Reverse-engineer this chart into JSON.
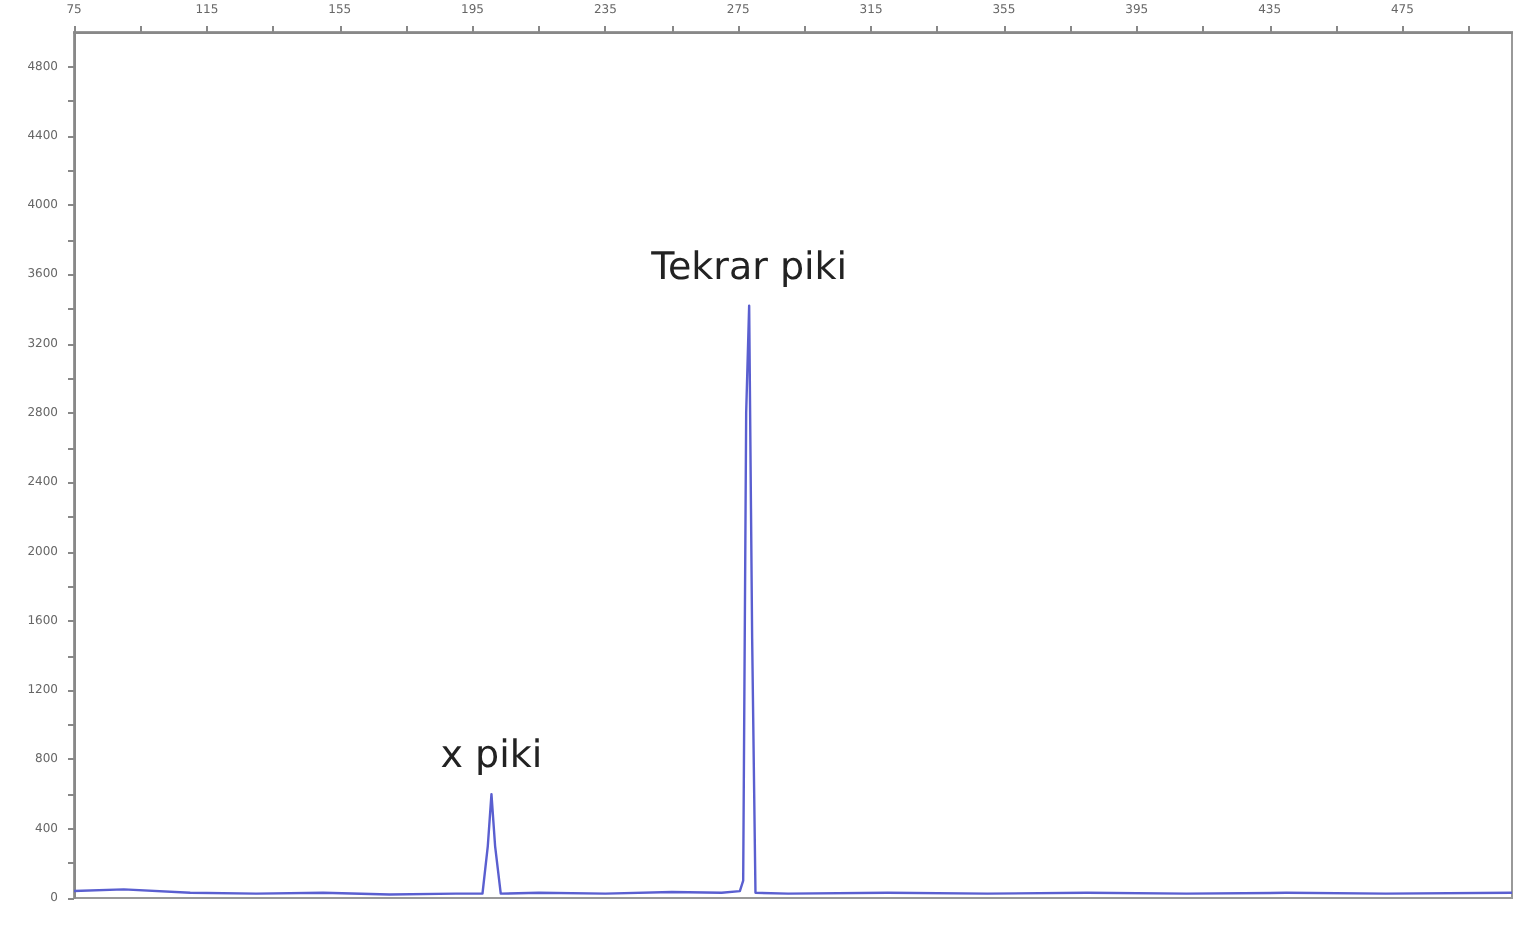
{
  "chart_data": {
    "type": "line",
    "xlim": [
      75,
      508
    ],
    "ylim": [
      0,
      5000
    ],
    "xticks": [
      75,
      {
        "value": 95,
        "label": null
      },
      115,
      {
        "value": 135,
        "label": null
      },
      155,
      {
        "value": 175,
        "label": null
      },
      195,
      {
        "value": 215,
        "label": null
      },
      235,
      {
        "value": 255,
        "label": null
      },
      275,
      {
        "value": 295,
        "label": null
      },
      315,
      {
        "value": 335,
        "label": null
      },
      355,
      {
        "value": 375,
        "label": null
      },
      395,
      {
        "value": 415,
        "label": null
      },
      435,
      {
        "value": 455,
        "label": null
      },
      475,
      {
        "value": 495,
        "label": null
      }
    ],
    "yticks": [
      0,
      {
        "value": 200,
        "label": null
      },
      400,
      {
        "value": 600,
        "label": null
      },
      800,
      {
        "value": 1000,
        "label": null
      },
      1200,
      {
        "value": 1400,
        "label": null
      },
      1600,
      {
        "value": 1800,
        "label": null
      },
      2000,
      {
        "value": 2200,
        "label": null
      },
      2400,
      {
        "value": 2600,
        "label": null
      },
      2800,
      {
        "value": 3000,
        "label": null
      },
      3200,
      {
        "value": 3400,
        "label": null
      },
      3600,
      {
        "value": 3800,
        "label": null
      },
      4000,
      {
        "value": 4200,
        "label": null
      },
      4400,
      {
        "value": 4600,
        "label": null
      },
      4800
    ],
    "x": [
      75,
      90,
      110,
      130,
      150,
      170,
      190,
      198,
      199.6,
      200.7,
      201.8,
      203.5,
      215,
      235,
      255,
      270,
      275.5,
      276.5,
      277.4,
      278.3,
      279.2,
      280.2,
      290,
      320,
      350,
      380,
      410,
      440,
      470,
      508
    ],
    "values": [
      40,
      50,
      30,
      25,
      30,
      20,
      25,
      25,
      300,
      600,
      300,
      25,
      30,
      25,
      35,
      30,
      40,
      100,
      2800,
      3420,
      1500,
      30,
      25,
      30,
      25,
      30,
      25,
      30,
      25,
      30
    ],
    "color": "#5a5fd0",
    "grid": false,
    "marker": "none",
    "line_style": "solid",
    "annotations": [
      {
        "text": "x piki",
        "x": 200.7,
        "y": 600
      },
      {
        "text": "Tekrar piki",
        "x": 278.3,
        "y": 3420
      }
    ]
  }
}
